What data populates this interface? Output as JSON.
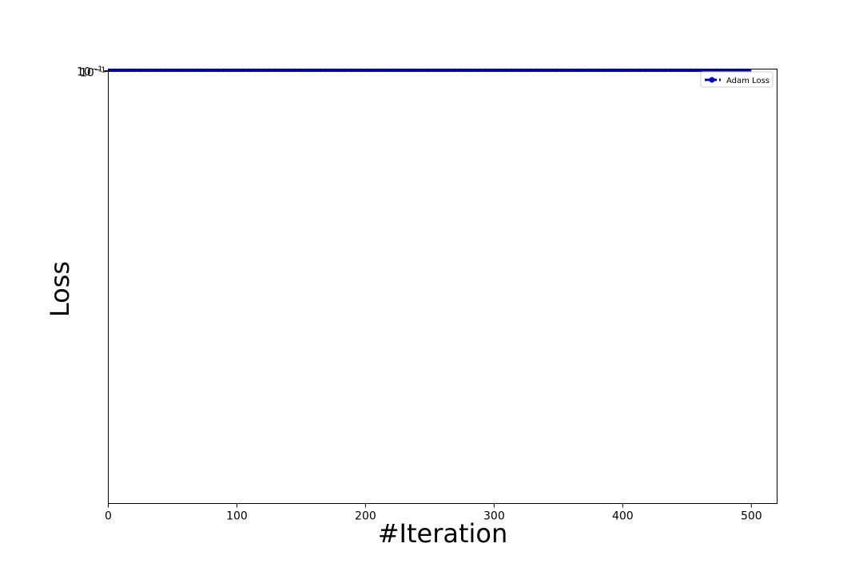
{
  "chart_data": {
    "type": "line",
    "title": "",
    "xlabel": "#Iteration",
    "ylabel": "Loss",
    "xlim": [
      0,
      520
    ],
    "x_ticks": [
      0,
      100,
      200,
      300,
      400,
      500
    ],
    "y_scale": "log",
    "y_tick_labels_overlapping": [
      "10−1",
      "10−1"
    ],
    "grid": false,
    "legend_position": "top-right",
    "series": [
      {
        "name": "Adam Loss",
        "color": "#0000cc",
        "marker": "circle",
        "linestyle": "dashed",
        "x_start": 1,
        "x_end": 500,
        "values_description_constant": 0.1
      }
    ]
  }
}
